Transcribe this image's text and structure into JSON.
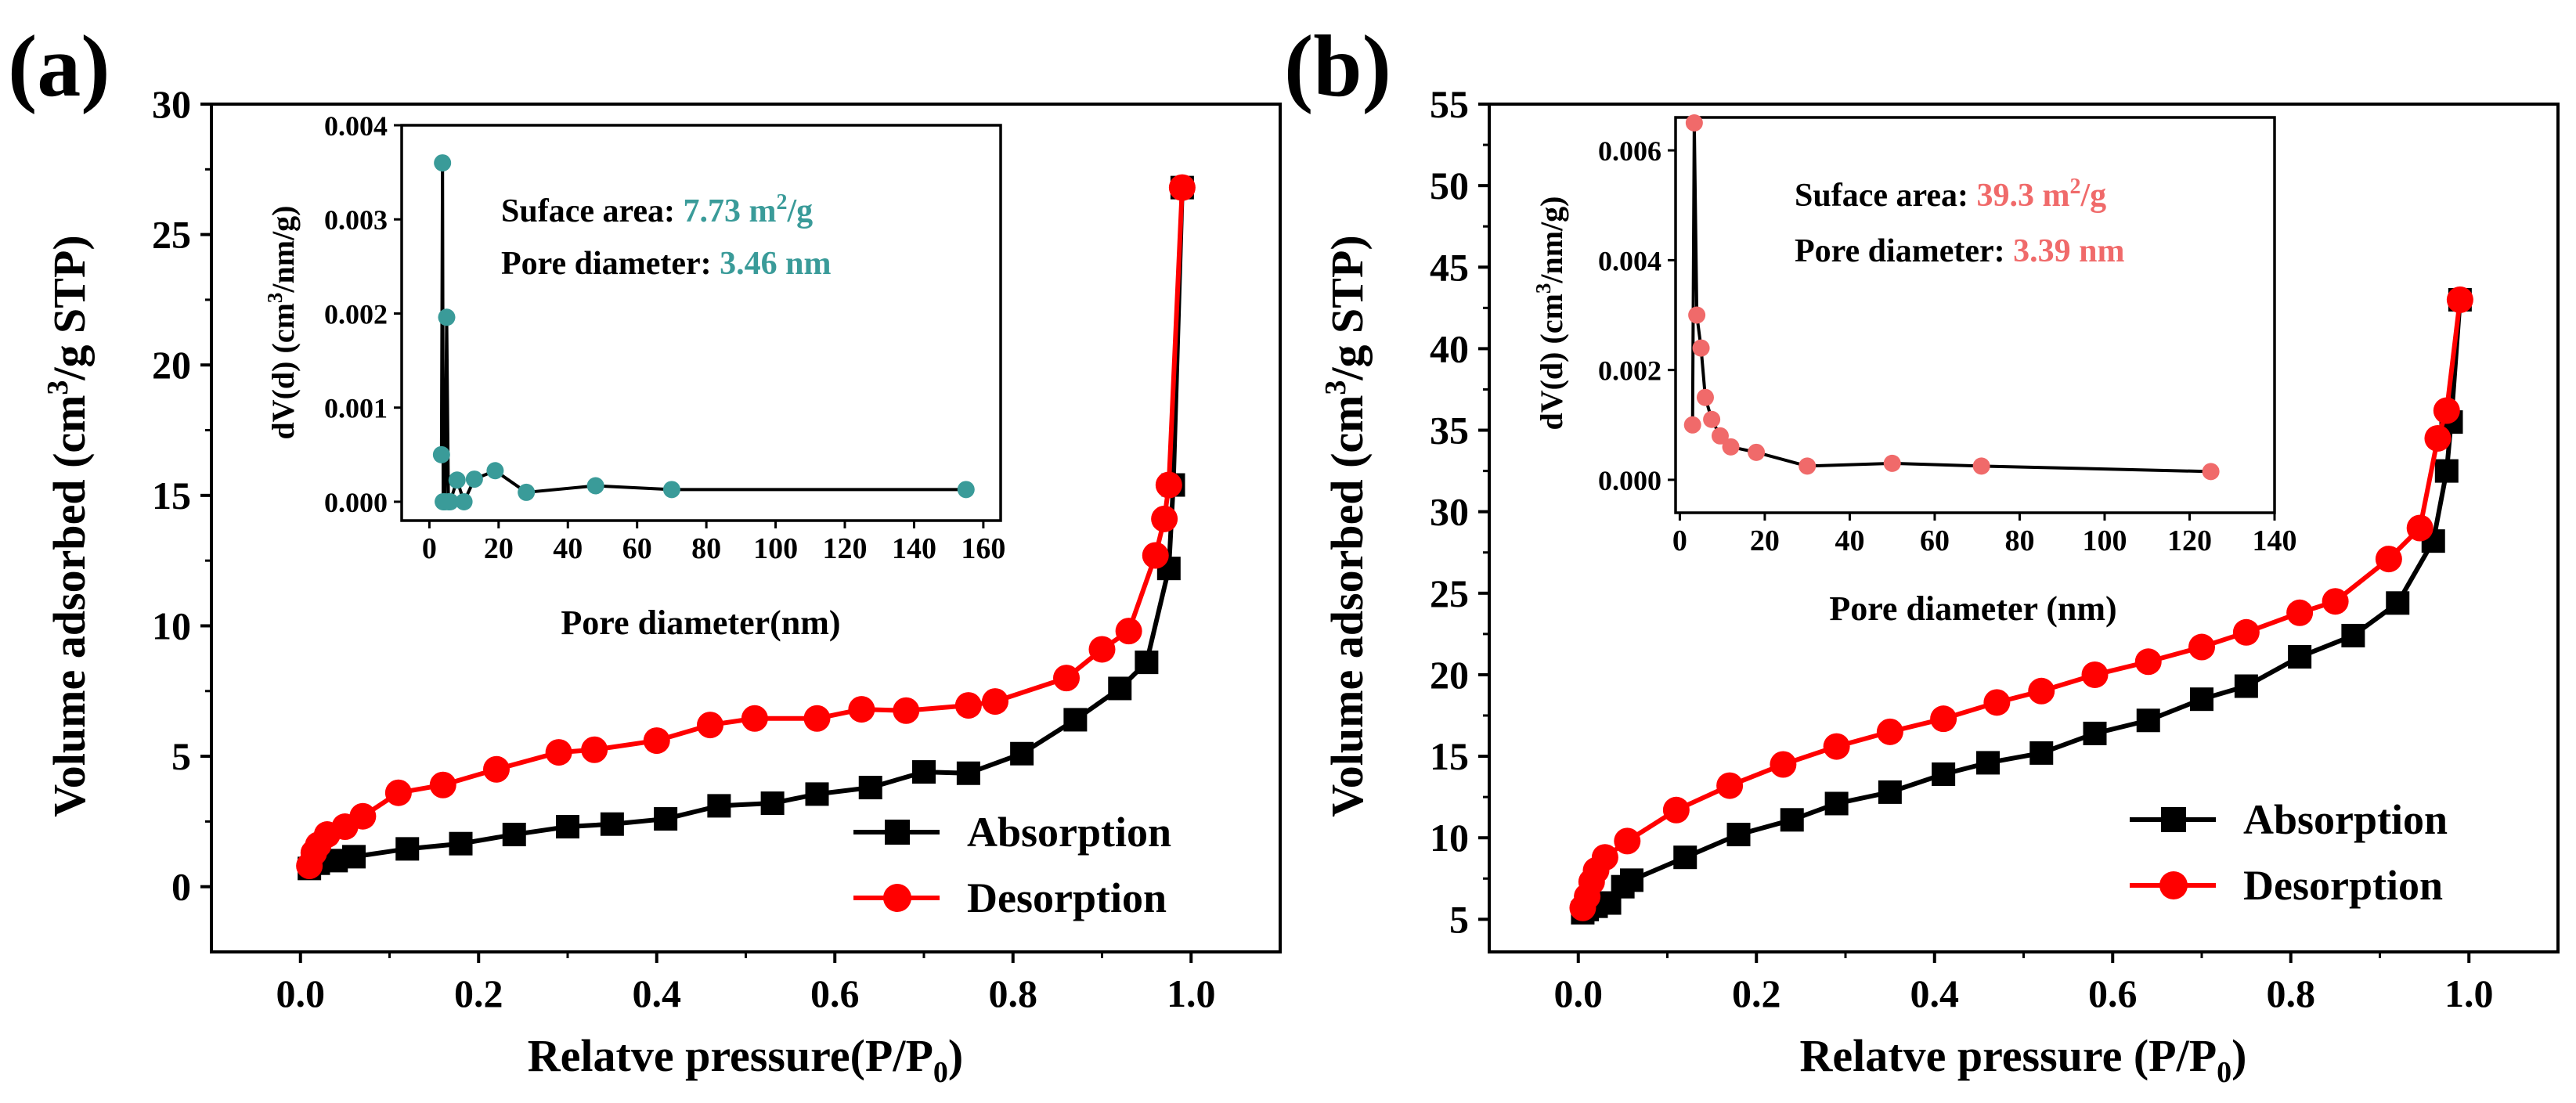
{
  "chart_data": [
    {
      "panel_label": "(a)",
      "type": "line",
      "xlabel_main": "Relatve pressure(P/P",
      "xlabel_sub": "0",
      "xlabel_close": ")",
      "ylabel_main": "Volume adsorbed (cm",
      "ylabel_sup": "3",
      "ylabel_end": "/g STP)",
      "xlim": [
        -0.1,
        1.1
      ],
      "ylim": [
        -2.5,
        30
      ],
      "xticks": [
        0.0,
        0.2,
        0.4,
        0.6,
        0.8,
        1.0
      ],
      "xtick_labels": [
        "0.0",
        "0.2",
        "0.4",
        "0.6",
        "0.8",
        "1.0"
      ],
      "yticks": [
        0,
        5,
        10,
        15,
        20,
        25,
        30
      ],
      "ytick_labels": [
        "0",
        "5",
        "10",
        "15",
        "20",
        "25",
        "30"
      ],
      "legend": {
        "placement": "lower-right",
        "entries": [
          "Absorption",
          "Desorption"
        ]
      },
      "series": [
        {
          "name": "Absorption",
          "color": "#000000",
          "marker": "square",
          "x": [
            0.01,
            0.02,
            0.04,
            0.06,
            0.12,
            0.18,
            0.24,
            0.3,
            0.35,
            0.41,
            0.47,
            0.53,
            0.58,
            0.64,
            0.7,
            0.75,
            0.81,
            0.87,
            0.92,
            0.95,
            0.975,
            0.98,
            0.99
          ],
          "y": [
            0.7,
            0.9,
            1.0,
            1.15,
            1.45,
            1.65,
            2.0,
            2.3,
            2.4,
            2.6,
            3.1,
            3.2,
            3.55,
            3.8,
            4.4,
            4.35,
            5.1,
            6.4,
            7.6,
            8.6,
            12.2,
            15.4,
            26.8
          ]
        },
        {
          "name": "Desorption",
          "color": "#ff0000",
          "marker": "circle",
          "x": [
            0.01,
            0.015,
            0.02,
            0.03,
            0.05,
            0.07,
            0.11,
            0.16,
            0.22,
            0.29,
            0.33,
            0.4,
            0.46,
            0.51,
            0.58,
            0.63,
            0.68,
            0.75,
            0.78,
            0.86,
            0.9,
            0.93,
            0.96,
            0.97,
            0.975,
            0.99
          ],
          "y": [
            0.8,
            1.3,
            1.6,
            2.0,
            2.3,
            2.7,
            3.6,
            3.9,
            4.5,
            5.15,
            5.25,
            5.6,
            6.2,
            6.45,
            6.45,
            6.8,
            6.75,
            6.95,
            7.1,
            8.0,
            9.1,
            9.8,
            12.7,
            14.1,
            15.4,
            26.8
          ]
        }
      ],
      "inset": {
        "type": "line",
        "color": "#3a9b99",
        "xlabel": "Pore diameter(nm)",
        "ylabel_main": "dV(d) (cm",
        "ylabel_sup": "3",
        "ylabel_end": "/nm/g)",
        "xlim": [
          -8,
          165
        ],
        "ylim": [
          -0.0002,
          0.004
        ],
        "xticks": [
          0,
          20,
          40,
          60,
          80,
          100,
          120,
          140,
          160
        ],
        "xtick_labels": [
          "0",
          "20",
          "40",
          "60",
          "80",
          "100",
          "120",
          "140",
          "160"
        ],
        "yticks": [
          0.0,
          0.001,
          0.002,
          0.003,
          0.004
        ],
        "ytick_labels": [
          "0.000",
          "0.001",
          "0.002",
          "0.003",
          "0.004"
        ],
        "x": [
          3.5,
          3.8,
          4.0,
          4.5,
          5.0,
          5.5,
          6.0,
          8.0,
          10.0,
          13.0,
          19.0,
          28.0,
          48.0,
          70.0,
          155.0
        ],
        "y": [
          0.0005,
          0.0036,
          0.0,
          0.0,
          0.00196,
          0.0,
          0.0,
          0.00023,
          0.0,
          0.00024,
          0.00033,
          0.0001,
          0.00017,
          0.00013,
          0.00013
        ],
        "annotations": [
          {
            "label": "Suface area: ",
            "value": "7.73 m",
            "sup": "2",
            "unit": "/g"
          },
          {
            "label": "Pore diameter: ",
            "value": "3.46 nm",
            "sup": "",
            "unit": ""
          }
        ]
      }
    },
    {
      "panel_label": "(b)",
      "type": "line",
      "xlabel_main": "Relatve pressure (P/P",
      "xlabel_sub": "0",
      "xlabel_close": ")",
      "ylabel_main": "Volume adsorbed (cm",
      "ylabel_sup": "3",
      "ylabel_end": "/g STP)",
      "xlim": [
        -0.1,
        1.1
      ],
      "ylim": [
        3,
        55
      ],
      "xticks": [
        0.0,
        0.2,
        0.4,
        0.6,
        0.8,
        1.0
      ],
      "xtick_labels": [
        "0.0",
        "0.2",
        "0.4",
        "0.6",
        "0.8",
        "1.0"
      ],
      "yticks": [
        5,
        10,
        15,
        20,
        25,
        30,
        35,
        40,
        45,
        50,
        55
      ],
      "ytick_labels": [
        "5",
        "10",
        "15",
        "20",
        "25",
        "30",
        "35",
        "40",
        "45",
        "50",
        "55"
      ],
      "legend": {
        "placement": "lower-right",
        "entries": [
          "Absorption",
          "Desorption"
        ]
      },
      "series": [
        {
          "name": "Absorption",
          "color": "#000000",
          "marker": "square",
          "x": [
            0.005,
            0.01,
            0.02,
            0.035,
            0.05,
            0.06,
            0.12,
            0.18,
            0.24,
            0.29,
            0.35,
            0.41,
            0.46,
            0.52,
            0.58,
            0.64,
            0.7,
            0.75,
            0.81,
            0.87,
            0.92,
            0.96,
            0.975,
            0.98,
            0.99
          ],
          "y": [
            5.4,
            5.6,
            5.8,
            6.0,
            7.0,
            7.4,
            8.8,
            10.2,
            11.1,
            12.1,
            12.8,
            13.9,
            14.6,
            15.2,
            16.4,
            17.2,
            18.5,
            19.3,
            21.1,
            22.4,
            24.4,
            28.2,
            32.5,
            35.5,
            43.0
          ]
        },
        {
          "name": "Desorption",
          "color": "#ff0000",
          "marker": "circle",
          "x": [
            0.005,
            0.01,
            0.015,
            0.02,
            0.03,
            0.055,
            0.11,
            0.17,
            0.23,
            0.29,
            0.35,
            0.41,
            0.47,
            0.52,
            0.58,
            0.64,
            0.7,
            0.75,
            0.81,
            0.85,
            0.91,
            0.945,
            0.965,
            0.975,
            0.99
          ],
          "y": [
            5.7,
            6.4,
            7.3,
            8.0,
            8.8,
            9.8,
            11.7,
            13.2,
            14.5,
            15.6,
            16.5,
            17.3,
            18.3,
            19.0,
            20.0,
            20.8,
            21.7,
            22.6,
            23.8,
            24.5,
            27.1,
            29.0,
            34.5,
            36.2,
            43.0
          ]
        }
      ],
      "inset": {
        "type": "line",
        "color": "#f06a6a",
        "xlabel": "Pore diameter (nm)",
        "ylabel_main": "dV(d) (cm",
        "ylabel_sup": "3",
        "ylabel_end": "/nm/g)",
        "xlim": [
          -1,
          140
        ],
        "ylim": [
          -0.0006,
          0.0066
        ],
        "xticks": [
          0,
          20,
          40,
          60,
          80,
          100,
          120,
          140
        ],
        "xtick_labels": [
          "0",
          "20",
          "40",
          "60",
          "80",
          "100",
          "120",
          "140"
        ],
        "yticks": [
          0.0,
          0.002,
          0.004,
          0.006
        ],
        "ytick_labels": [
          "0.000",
          "0.002",
          "0.004",
          "0.006"
        ],
        "x": [
          3.0,
          3.4,
          4.0,
          5.0,
          6.0,
          7.5,
          9.5,
          12.0,
          18.0,
          30.0,
          50.0,
          71.0,
          125.0
        ],
        "y": [
          0.001,
          0.0065,
          0.003,
          0.0024,
          0.0015,
          0.0011,
          0.0008,
          0.0006,
          0.0005,
          0.00025,
          0.0003,
          0.00025,
          0.00015
        ],
        "annotations": [
          {
            "label": "Suface area: ",
            "value": "39.3 m",
            "sup": "2",
            "unit": "/g"
          },
          {
            "label": "Pore diameter: ",
            "value": "3.39 nm",
            "sup": "",
            "unit": ""
          }
        ]
      }
    }
  ]
}
